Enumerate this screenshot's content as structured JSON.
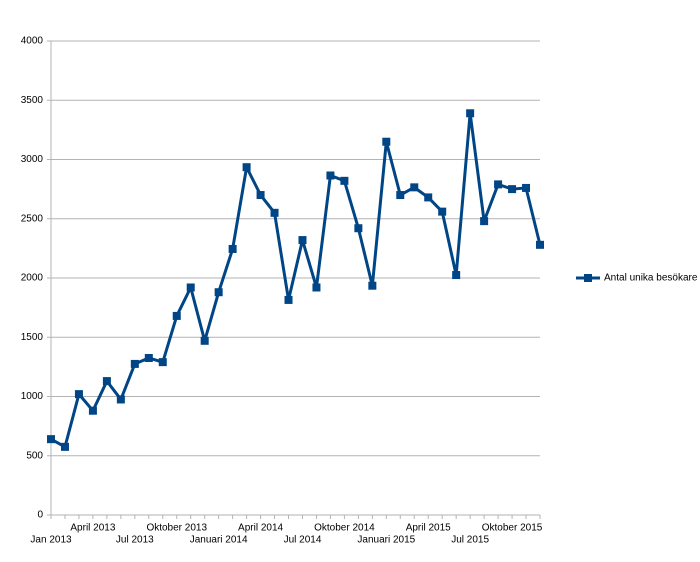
{
  "chart_data": {
    "type": "line",
    "categories": [
      "Jan 2013",
      null,
      null,
      "April 2013",
      null,
      null,
      "Jul 2013",
      null,
      null,
      "Oktober 2013",
      null,
      null,
      "Januari 2014",
      null,
      null,
      "April 2014",
      null,
      null,
      "Jul 2014",
      null,
      null,
      "Oktober 2014",
      null,
      null,
      "Januari 2015",
      null,
      null,
      "April 2015",
      null,
      null,
      "Jul 2015",
      null,
      null,
      "Oktober 2015",
      null,
      null
    ],
    "series": [
      {
        "name": "Antal unika besökare",
        "color": "#004586",
        "values": [
          640,
          575,
          1020,
          880,
          1130,
          975,
          1275,
          1325,
          1290,
          1680,
          1920,
          1470,
          1880,
          2245,
          2935,
          2700,
          2550,
          1815,
          2320,
          1920,
          2865,
          2820,
          2420,
          1935,
          3150,
          2700,
          2765,
          2680,
          2560,
          2025,
          3390,
          2480,
          2790,
          2750,
          2760,
          2280
        ]
      }
    ],
    "ylim": [
      0,
      4000
    ],
    "yticks": [
      0,
      500,
      1000,
      1500,
      2000,
      2500,
      3000,
      3500,
      4000
    ],
    "grid": true,
    "legend": "right"
  }
}
